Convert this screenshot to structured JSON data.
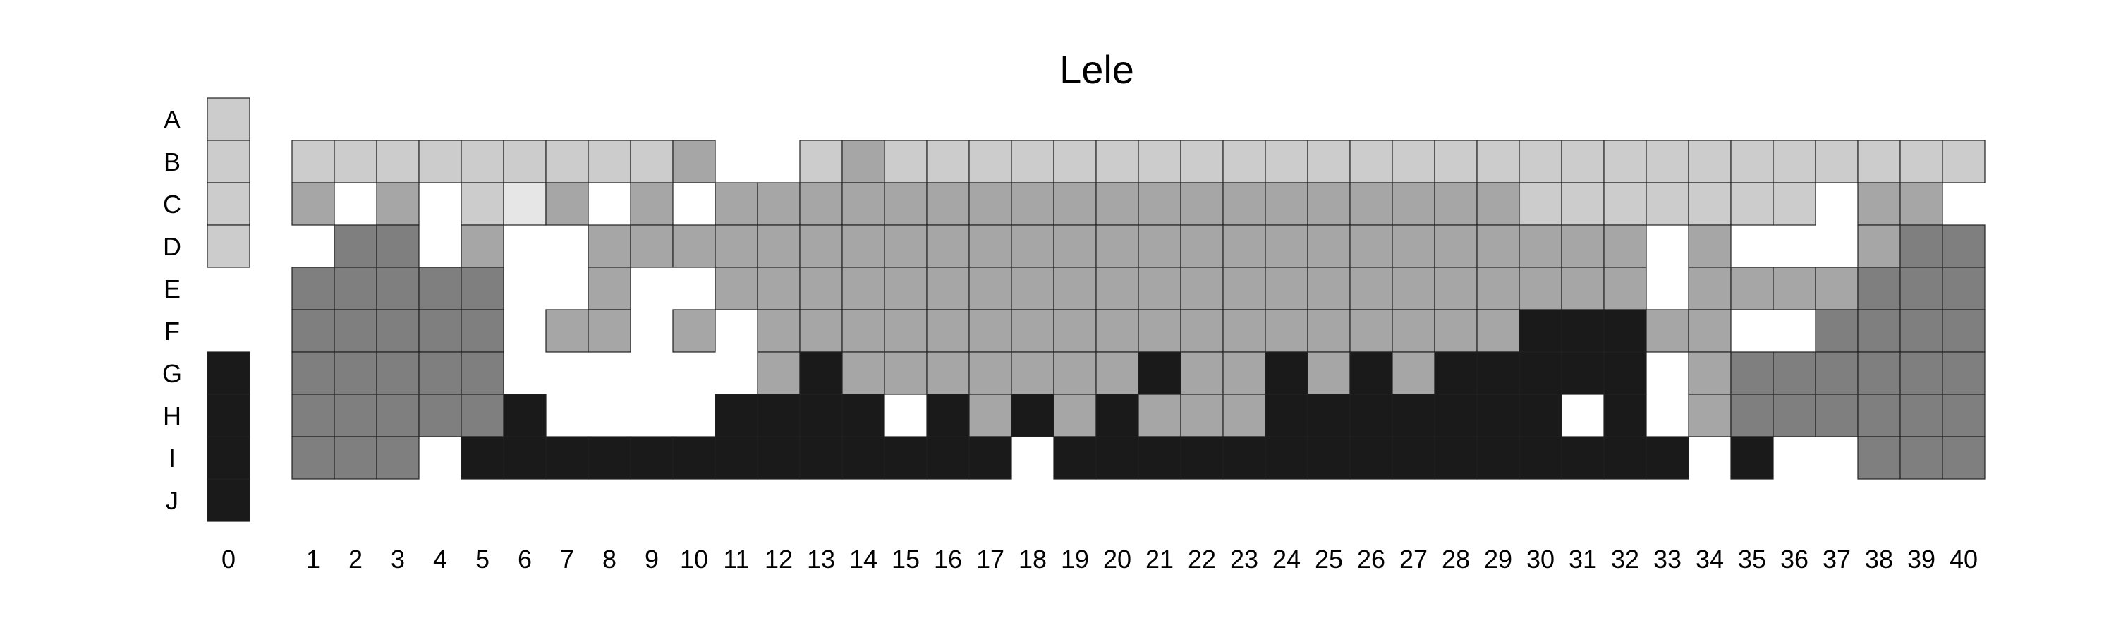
{
  "chart_data": {
    "type": "heatmap",
    "title": "Lele",
    "xlabel": "",
    "ylabel": "",
    "grid": false,
    "x_ticks": [
      "0",
      "1",
      "2",
      "3",
      "4",
      "5",
      "6",
      "7",
      "8",
      "9",
      "10",
      "11",
      "12",
      "13",
      "14",
      "15",
      "16",
      "17",
      "18",
      "19",
      "20",
      "21",
      "22",
      "23",
      "24",
      "25",
      "26",
      "27",
      "28",
      "29",
      "30",
      "31",
      "32",
      "33",
      "34",
      "35",
      "36",
      "37",
      "38",
      "39",
      "40"
    ],
    "y_ticks": [
      "A",
      "B",
      "C",
      "D",
      "E",
      "F",
      "G",
      "H",
      "I",
      "J"
    ],
    "level_colors": {
      "0": "#ffffff",
      "1": "#e6e6e6",
      "2": "#cccccc",
      "3": "#a6a6a6",
      "4": "#7f7f7f",
      "5": "#1a1a1a"
    },
    "value_scale": "0 = empty, 1 = lightest grey, 5 = black",
    "neutral_column": [
      "2",
      "2",
      "2",
      "2",
      "0",
      "0",
      "5",
      "5",
      "5",
      "5"
    ],
    "rows": [
      "B 2222222223002322222222222222222222222222",
      "C 3030213030333333333333333333322222220330",
      "D 0440300333333333333333333333333303000344",
      "E 4444400300333333333333333333333303333444",
      "F 4444403303033333333333333333355533004444",
      "G 4444400000035333333353353535555503444444",
      "H 4444450000555505353533355555550503444444",
      "I 4440555555555555505555555555555550500444"
    ]
  }
}
